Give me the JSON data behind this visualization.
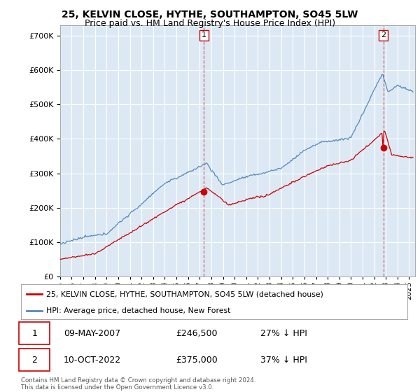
{
  "title": "25, KELVIN CLOSE, HYTHE, SOUTHAMPTON, SO45 5LW",
  "subtitle": "Price paid vs. HM Land Registry's House Price Index (HPI)",
  "legend_label_red": "25, KELVIN CLOSE, HYTHE, SOUTHAMPTON, SO45 5LW (detached house)",
  "legend_label_blue": "HPI: Average price, detached house, New Forest",
  "footnote": "Contains HM Land Registry data © Crown copyright and database right 2024.\nThis data is licensed under the Open Government Licence v3.0.",
  "sale1_label": "1",
  "sale1_date": "09-MAY-2007",
  "sale1_price": "£246,500",
  "sale1_hpi": "27% ↓ HPI",
  "sale1_year": 2007.36,
  "sale1_value": 246500,
  "sale2_label": "2",
  "sale2_date": "10-OCT-2022",
  "sale2_price": "£375,000",
  "sale2_hpi": "37% ↓ HPI",
  "sale2_year": 2022.78,
  "sale2_value": 375000,
  "ylim": [
    0,
    730000
  ],
  "yticks": [
    0,
    100000,
    200000,
    300000,
    400000,
    500000,
    600000,
    700000
  ],
  "xlim_left": 1995.0,
  "xlim_right": 2025.5,
  "background_color": "#ffffff",
  "plot_bg_color": "#dce9f5",
  "grid_color": "#ffffff",
  "red_color": "#cc0000",
  "blue_color": "#5588bb",
  "title_fontsize": 10,
  "subtitle_fontsize": 9
}
